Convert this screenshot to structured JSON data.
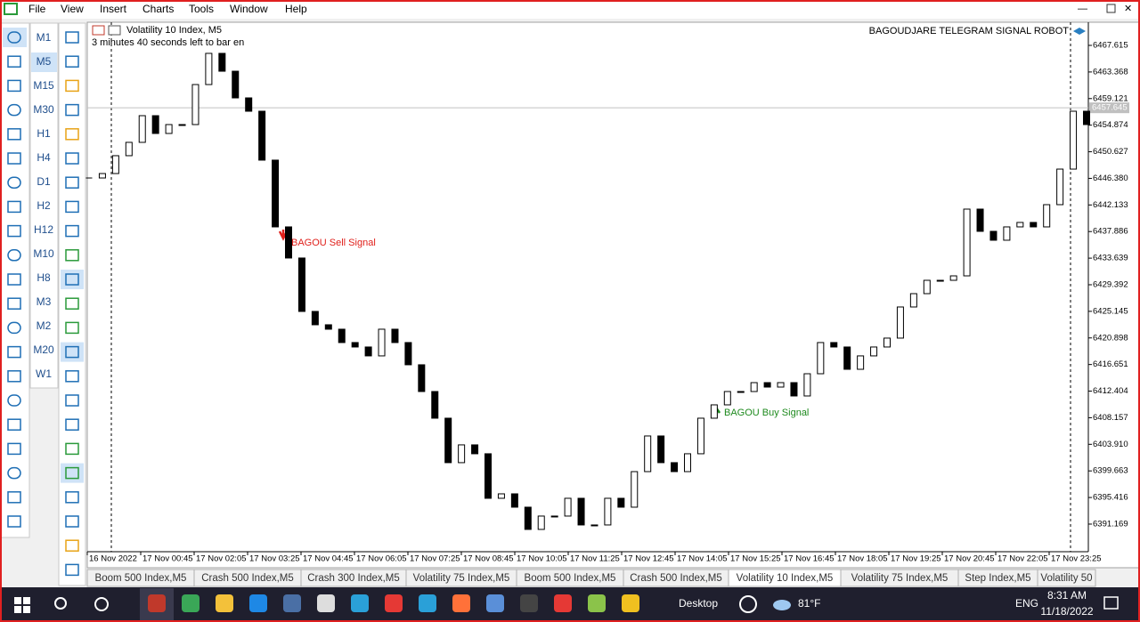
{
  "menu": [
    "File",
    "View",
    "Insert",
    "Charts",
    "Tools",
    "Window",
    "Help"
  ],
  "timeframes": [
    "M1",
    "M5",
    "M15",
    "M30",
    "H1",
    "H4",
    "D1",
    "H2",
    "H12",
    "M10",
    "H8",
    "M3",
    "M2",
    "M20",
    "W1"
  ],
  "chart_data": {
    "type": "candlestick",
    "title": "Volatility 10 Index, M5",
    "subtitle": "3 minutes 40 seconds left to bar en",
    "robot_label": "BAGOUDJARE TELEGRAM SIGNAL ROBOT",
    "annotations": [
      {
        "text": "BAGOU Sell Signal",
        "color": "#e0201b"
      },
      {
        "text": "BAGOU Buy Signal",
        "color": "#1e8a1e"
      }
    ],
    "x_labels": [
      "16 Nov 2022",
      "17 Nov 00:45",
      "17 Nov 02:05",
      "17 Nov 03:25",
      "17 Nov 04:45",
      "17 Nov 06:05",
      "17 Nov 07:25",
      "17 Nov 08:45",
      "17 Nov 10:05",
      "17 Nov 11:25",
      "17 Nov 12:45",
      "17 Nov 14:05",
      "17 Nov 15:25",
      "17 Nov 16:45",
      "17 Nov 18:05",
      "17 Nov 19:25",
      "17 Nov 20:45",
      "17 Nov 22:05",
      "17 Nov 23:25"
    ],
    "values": [
      6446.44,
      6447.15,
      6450.0,
      6452.13,
      6456.39,
      6453.55,
      6454.97,
      6454.97,
      6461.36,
      6466.34,
      6463.49,
      6459.23,
      6457.1,
      6449.29,
      6438.63,
      6433.66,
      6425.13,
      6423.0,
      6422.29,
      6420.16,
      6419.45,
      6418.03,
      6422.29,
      6420.16,
      6416.61,
      6412.34,
      6408.08,
      6400.98,
      6403.82,
      6402.4,
      6395.29,
      6396.0,
      6393.87,
      6390.32,
      6392.45,
      6392.45,
      6395.29,
      6391.03,
      6391.03,
      6395.29,
      6393.87,
      6399.55,
      6405.24,
      6400.98,
      6399.55,
      6402.4,
      6408.08,
      6410.21,
      6412.34,
      6412.34,
      6413.76,
      6413.05,
      6413.76,
      6411.63,
      6415.18,
      6420.16,
      6419.45,
      6415.89,
      6418.03,
      6419.45,
      6420.87,
      6425.84,
      6427.97,
      6430.1,
      6430.1,
      6430.81,
      6441.47,
      6437.92,
      6436.5,
      6438.63,
      6439.34,
      6438.63,
      6442.18,
      6447.86,
      6457.1,
      6454.97
    ],
    "up_color": "#ffffff",
    "down_color": "#000000",
    "current_price": {
      "value": 6457.645,
      "label": "6457.645"
    },
    "ylim": [
      6386.76,
      6471.31
    ],
    "yticks": [
      6467.615,
      6463.368,
      6459.121,
      6454.874,
      6450.627,
      {
        "value": 6446.38,
        "label": "6446.380"
      },
      6442.133,
      6437.886,
      6433.639,
      6429.392,
      6425.145,
      6420.898,
      6416.651,
      6412.404,
      6408.157,
      {
        "value": 6403.91,
        "label": "6403.910"
      },
      6399.663,
      6395.416,
      6391.169
    ]
  },
  "tabs": [
    "Boom 500 Index,M5",
    "Crash 500 Index,M5",
    "Crash 300 Index,M5",
    "Volatility 75 Index,M5",
    "Boom 500 Index,M5",
    "Crash 500 Index,M5",
    "Volatility 10 Index,M5",
    "Volatility 75 Index,M5",
    "Step Index,M5",
    "Volatility 50"
  ],
  "active_tab": 6,
  "taskbar": {
    "desktop": "Desktop",
    "weather": "81°F",
    "language": "ENG",
    "time": "8:31 AM",
    "date": "11/18/2022"
  }
}
